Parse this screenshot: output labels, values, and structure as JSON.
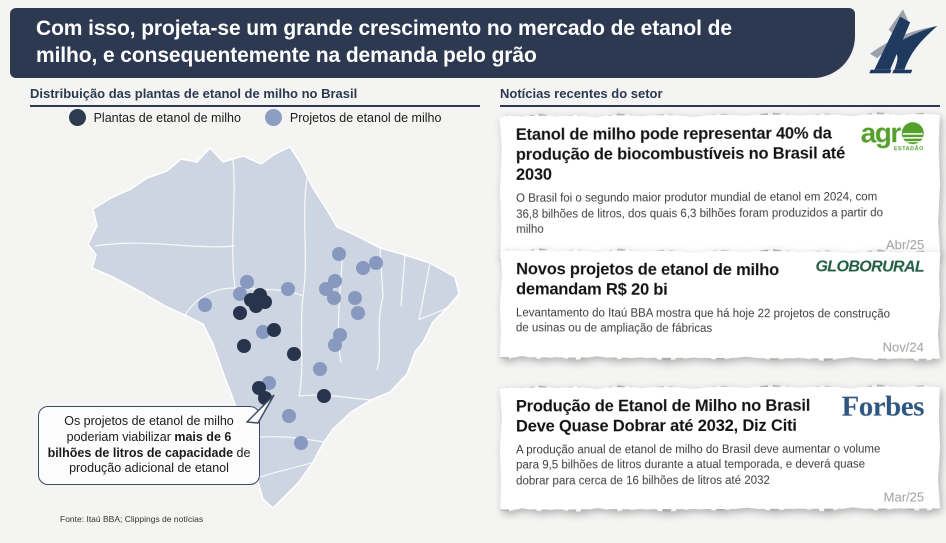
{
  "slide": {
    "title": "Com isso, projeta-se um grande crescimento no mercado de etanol de milho, e consequentemente na demanda pelo grão",
    "source": "Fonte: Itaú BBA; Clippings de notícias",
    "colors": {
      "navy": "#2c3950",
      "background": "#f4f4f3"
    }
  },
  "left_panel": {
    "header": "Distribuição das plantas de etanol de milho no Brasil",
    "legend": [
      {
        "label": "Plantas de etanol de milho",
        "color": "#2d3a50"
      },
      {
        "label": "Projetos de etanol de milho",
        "color": "#8c9fc3"
      }
    ],
    "callout": {
      "text_before": "Os projetos de etanol de milho poderiam viabilizar ",
      "text_bold": "mais de 6 bilhões de litros de capacidade",
      "text_after": " de produção adicional de etanol"
    }
  },
  "map": {
    "region": "Brasil",
    "fill": "#cdd4e2",
    "border_color": "#ffffff",
    "plant_color": "#27344c",
    "project_color": "#8799bf",
    "dot_radius": 7,
    "plants": [
      [
        166,
        162
      ],
      [
        175,
        157
      ],
      [
        171,
        168
      ],
      [
        180,
        164
      ],
      [
        155,
        175
      ],
      [
        189,
        192
      ],
      [
        159,
        208
      ],
      [
        209,
        216
      ],
      [
        239,
        258
      ],
      [
        174,
        250
      ],
      [
        180,
        260
      ]
    ],
    "projects": [
      [
        254,
        116
      ],
      [
        291,
        125
      ],
      [
        278,
        130
      ],
      [
        162,
        144
      ],
      [
        155,
        156
      ],
      [
        203,
        151
      ],
      [
        241,
        151
      ],
      [
        250,
        143
      ],
      [
        249,
        160
      ],
      [
        270,
        160
      ],
      [
        273,
        175
      ],
      [
        120,
        167
      ],
      [
        178,
        194
      ],
      [
        255,
        197
      ],
      [
        250,
        207
      ],
      [
        235,
        231
      ],
      [
        184,
        245
      ],
      [
        204,
        278
      ],
      [
        216,
        305
      ]
    ]
  },
  "right_panel": {
    "header": "Notícias recentes do setor",
    "news": [
      {
        "headline": "Etanol de milho pode representar 40% da produção de biocombustíveis no Brasil até 2030",
        "body": "O Brasil foi o segundo maior produtor mundial de etanol em 2024, com 36,8 bilhões de litros, dos quais 6,3 bilhões foram produzidos a partir do milho",
        "date": "Abr/25",
        "source_name": "Agro Estadão",
        "logo_text": "agr",
        "logo_sub": "ESTADÃO"
      },
      {
        "headline": "Novos projetos de etanol de milho demandam R$ 20 bi",
        "body": "Levantamento do Itaú BBA mostra que há hoje 22 projetos de construção de usinas ou de ampliação de fábricas",
        "date": "Nov/24",
        "source_name": "Globo Rural",
        "logo_text": "GLOBORURAL"
      },
      {
        "headline": "Produção de Etanol de Milho no Brasil Deve Quase Dobrar até 2032, Diz Citi",
        "body": "A produção anual de etanol de milho do Brasil deve aumentar o volume para 9,5 bilhões de litros durante a atual temporada, e deverá quase dobrar para cerca de 16 bilhões de litros até 2032",
        "date": "Mar/25",
        "source_name": "Forbes",
        "logo_text": "Forbes"
      }
    ]
  }
}
